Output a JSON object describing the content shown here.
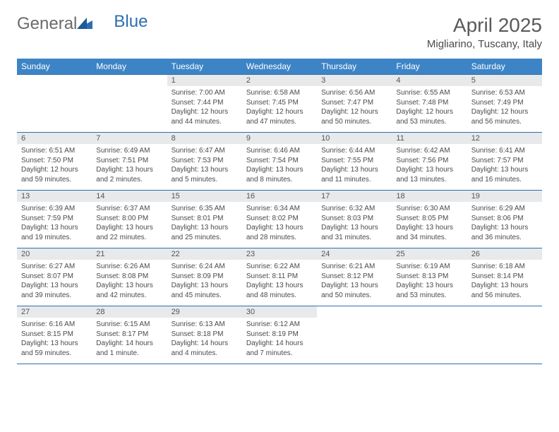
{
  "logo": {
    "part1": "General",
    "part2": "Blue"
  },
  "title": "April 2025",
  "subtitle": "Migliarino, Tuscany, Italy",
  "colors": {
    "header_bg": "#3d84c6",
    "header_text": "#ffffff",
    "daynum_bg": "#e8e9ea",
    "rule": "#2b6fb0",
    "body_text": "#4a4a4a",
    "title_text": "#5a5a5a"
  },
  "daysOfWeek": [
    "Sunday",
    "Monday",
    "Tuesday",
    "Wednesday",
    "Thursday",
    "Friday",
    "Saturday"
  ],
  "weeks": [
    [
      null,
      null,
      {
        "n": 1,
        "sunrise": "7:00 AM",
        "sunset": "7:44 PM",
        "daylight": "12 hours and 44 minutes."
      },
      {
        "n": 2,
        "sunrise": "6:58 AM",
        "sunset": "7:45 PM",
        "daylight": "12 hours and 47 minutes."
      },
      {
        "n": 3,
        "sunrise": "6:56 AM",
        "sunset": "7:47 PM",
        "daylight": "12 hours and 50 minutes."
      },
      {
        "n": 4,
        "sunrise": "6:55 AM",
        "sunset": "7:48 PM",
        "daylight": "12 hours and 53 minutes."
      },
      {
        "n": 5,
        "sunrise": "6:53 AM",
        "sunset": "7:49 PM",
        "daylight": "12 hours and 56 minutes."
      }
    ],
    [
      {
        "n": 6,
        "sunrise": "6:51 AM",
        "sunset": "7:50 PM",
        "daylight": "12 hours and 59 minutes."
      },
      {
        "n": 7,
        "sunrise": "6:49 AM",
        "sunset": "7:51 PM",
        "daylight": "13 hours and 2 minutes."
      },
      {
        "n": 8,
        "sunrise": "6:47 AM",
        "sunset": "7:53 PM",
        "daylight": "13 hours and 5 minutes."
      },
      {
        "n": 9,
        "sunrise": "6:46 AM",
        "sunset": "7:54 PM",
        "daylight": "13 hours and 8 minutes."
      },
      {
        "n": 10,
        "sunrise": "6:44 AM",
        "sunset": "7:55 PM",
        "daylight": "13 hours and 11 minutes."
      },
      {
        "n": 11,
        "sunrise": "6:42 AM",
        "sunset": "7:56 PM",
        "daylight": "13 hours and 13 minutes."
      },
      {
        "n": 12,
        "sunrise": "6:41 AM",
        "sunset": "7:57 PM",
        "daylight": "13 hours and 16 minutes."
      }
    ],
    [
      {
        "n": 13,
        "sunrise": "6:39 AM",
        "sunset": "7:59 PM",
        "daylight": "13 hours and 19 minutes."
      },
      {
        "n": 14,
        "sunrise": "6:37 AM",
        "sunset": "8:00 PM",
        "daylight": "13 hours and 22 minutes."
      },
      {
        "n": 15,
        "sunrise": "6:35 AM",
        "sunset": "8:01 PM",
        "daylight": "13 hours and 25 minutes."
      },
      {
        "n": 16,
        "sunrise": "6:34 AM",
        "sunset": "8:02 PM",
        "daylight": "13 hours and 28 minutes."
      },
      {
        "n": 17,
        "sunrise": "6:32 AM",
        "sunset": "8:03 PM",
        "daylight": "13 hours and 31 minutes."
      },
      {
        "n": 18,
        "sunrise": "6:30 AM",
        "sunset": "8:05 PM",
        "daylight": "13 hours and 34 minutes."
      },
      {
        "n": 19,
        "sunrise": "6:29 AM",
        "sunset": "8:06 PM",
        "daylight": "13 hours and 36 minutes."
      }
    ],
    [
      {
        "n": 20,
        "sunrise": "6:27 AM",
        "sunset": "8:07 PM",
        "daylight": "13 hours and 39 minutes."
      },
      {
        "n": 21,
        "sunrise": "6:26 AM",
        "sunset": "8:08 PM",
        "daylight": "13 hours and 42 minutes."
      },
      {
        "n": 22,
        "sunrise": "6:24 AM",
        "sunset": "8:09 PM",
        "daylight": "13 hours and 45 minutes."
      },
      {
        "n": 23,
        "sunrise": "6:22 AM",
        "sunset": "8:11 PM",
        "daylight": "13 hours and 48 minutes."
      },
      {
        "n": 24,
        "sunrise": "6:21 AM",
        "sunset": "8:12 PM",
        "daylight": "13 hours and 50 minutes."
      },
      {
        "n": 25,
        "sunrise": "6:19 AM",
        "sunset": "8:13 PM",
        "daylight": "13 hours and 53 minutes."
      },
      {
        "n": 26,
        "sunrise": "6:18 AM",
        "sunset": "8:14 PM",
        "daylight": "13 hours and 56 minutes."
      }
    ],
    [
      {
        "n": 27,
        "sunrise": "6:16 AM",
        "sunset": "8:15 PM",
        "daylight": "13 hours and 59 minutes."
      },
      {
        "n": 28,
        "sunrise": "6:15 AM",
        "sunset": "8:17 PM",
        "daylight": "14 hours and 1 minute."
      },
      {
        "n": 29,
        "sunrise": "6:13 AM",
        "sunset": "8:18 PM",
        "daylight": "14 hours and 4 minutes."
      },
      {
        "n": 30,
        "sunrise": "6:12 AM",
        "sunset": "8:19 PM",
        "daylight": "14 hours and 7 minutes."
      },
      null,
      null,
      null
    ]
  ]
}
